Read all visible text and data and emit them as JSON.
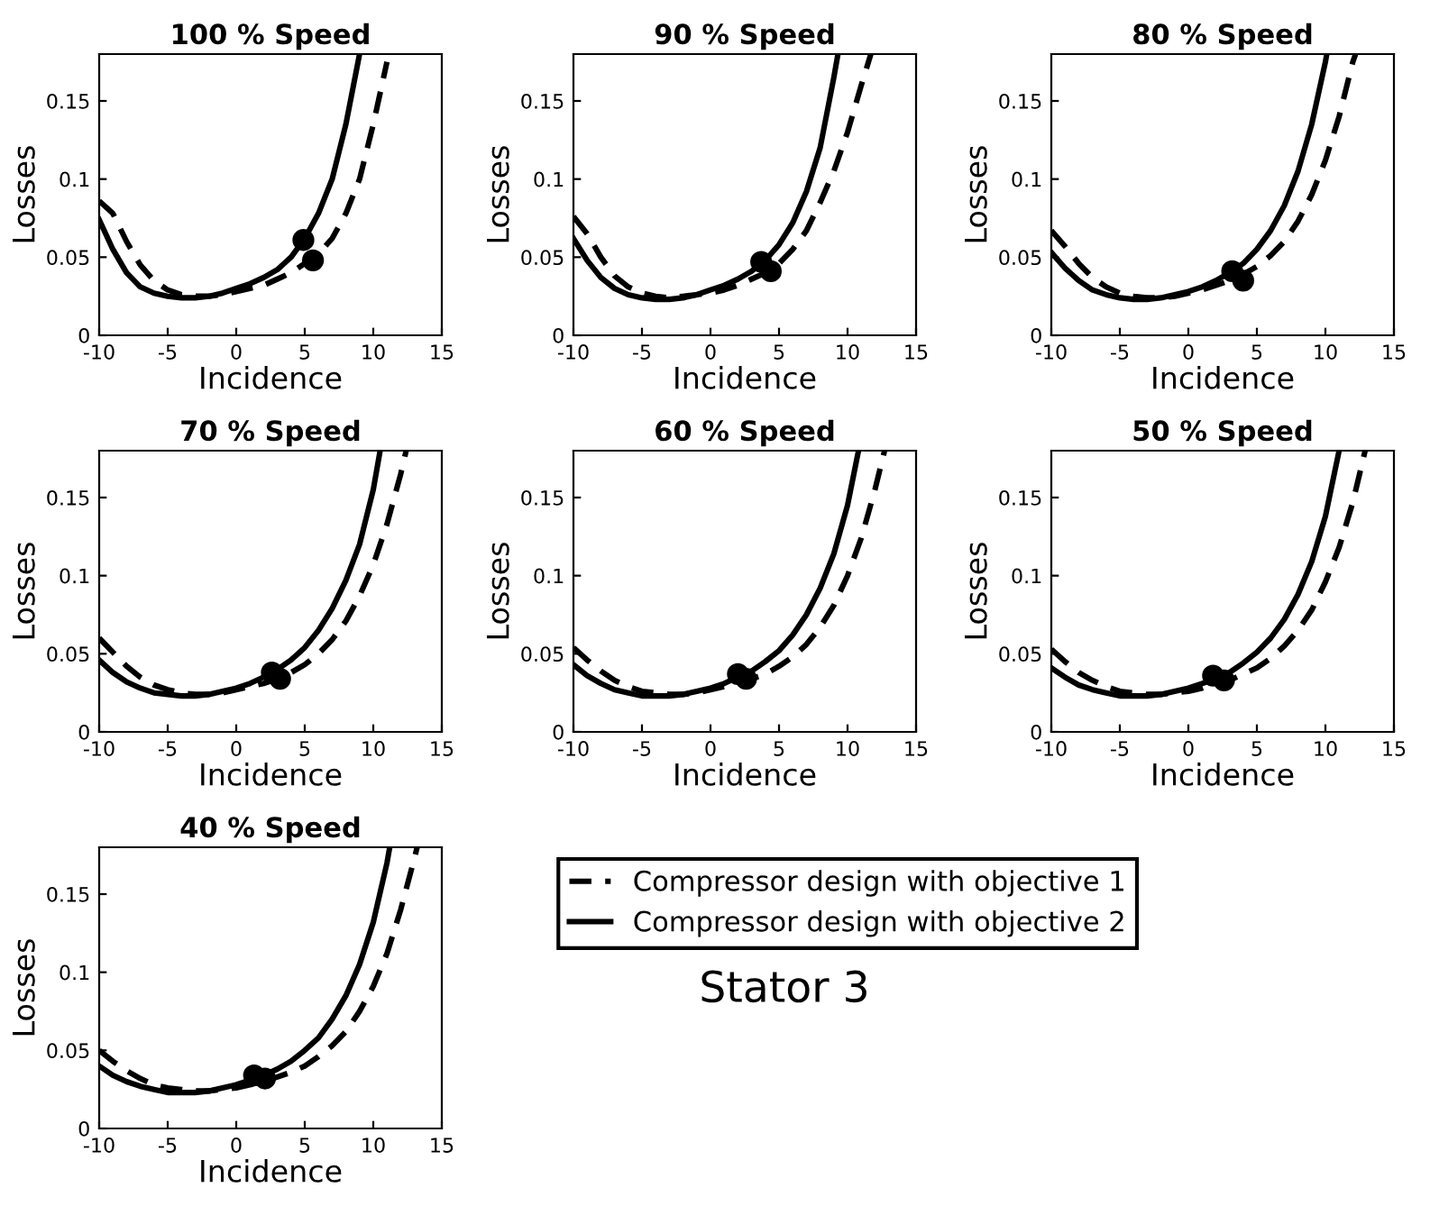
{
  "chart_data": [
    {
      "type": "line",
      "title": "100 % Speed",
      "xlabel": "Incidence",
      "ylabel": "Losses",
      "xlim": [
        -10,
        15
      ],
      "xticks": [
        -10,
        -5,
        0,
        5,
        10,
        15
      ],
      "ylim": [
        0,
        0.18
      ],
      "yticks": [
        0,
        0.05,
        0.1,
        0.15
      ],
      "grid": false,
      "series": [
        {
          "color": "#000000",
          "line_style": "dashed",
          "x": [
            -10,
            -9,
            -8,
            -7,
            -6,
            -5,
            -4,
            -3,
            -2,
            -1,
            0,
            1,
            2,
            3,
            4,
            5,
            6,
            7,
            8,
            9,
            10,
            11
          ],
          "values": [
            0.086,
            0.078,
            0.06,
            0.045,
            0.035,
            0.029,
            0.026,
            0.025,
            0.025,
            0.026,
            0.028,
            0.03,
            0.032,
            0.036,
            0.04,
            0.046,
            0.052,
            0.062,
            0.078,
            0.1,
            0.135,
            0.175
          ]
        },
        {
          "color": "#000000",
          "line_style": "solid",
          "x": [
            -10,
            -9,
            -8,
            -7,
            -6,
            -5,
            -4,
            -3,
            -2,
            -1,
            0,
            1,
            2,
            3,
            4,
            5,
            6,
            7,
            8,
            9
          ],
          "values": [
            0.074,
            0.055,
            0.04,
            0.031,
            0.027,
            0.025,
            0.024,
            0.024,
            0.025,
            0.027,
            0.03,
            0.033,
            0.037,
            0.042,
            0.05,
            0.062,
            0.078,
            0.1,
            0.135,
            0.18
          ]
        },
        {
          "type": "scatter",
          "color": "#000000",
          "marker": "circle",
          "x": [
            5.6
          ],
          "values": [
            0.048
          ]
        },
        {
          "type": "scatter",
          "color": "#000000",
          "marker": "circle",
          "x": [
            4.9
          ],
          "values": [
            0.061
          ]
        }
      ]
    },
    {
      "type": "line",
      "title": "90 % Speed",
      "xlabel": "Incidence",
      "ylabel": "Losses",
      "xlim": [
        -10,
        15
      ],
      "xticks": [
        -10,
        -5,
        0,
        5,
        10,
        15
      ],
      "ylim": [
        0,
        0.18
      ],
      "yticks": [
        0,
        0.05,
        0.1,
        0.15
      ],
      "grid": false,
      "series": [
        {
          "color": "#000000",
          "line_style": "dashed",
          "x": [
            -10,
            -9,
            -8,
            -7,
            -6,
            -5,
            -4,
            -3,
            -2,
            -1,
            0,
            1,
            2,
            3,
            4,
            5,
            6,
            7,
            8,
            9,
            10,
            11,
            11.7
          ],
          "values": [
            0.076,
            0.065,
            0.05,
            0.038,
            0.031,
            0.027,
            0.025,
            0.024,
            0.025,
            0.026,
            0.027,
            0.029,
            0.032,
            0.036,
            0.04,
            0.046,
            0.055,
            0.067,
            0.085,
            0.105,
            0.13,
            0.16,
            0.18
          ]
        },
        {
          "color": "#000000",
          "line_style": "solid",
          "x": [
            -10,
            -9,
            -8,
            -7,
            -6,
            -5,
            -4,
            -3,
            -2,
            -1,
            0,
            1,
            2,
            3,
            4,
            5,
            6,
            7,
            8,
            9,
            9.3
          ],
          "values": [
            0.062,
            0.048,
            0.037,
            0.03,
            0.026,
            0.024,
            0.023,
            0.023,
            0.024,
            0.026,
            0.029,
            0.032,
            0.036,
            0.041,
            0.048,
            0.058,
            0.072,
            0.092,
            0.12,
            0.165,
            0.18
          ]
        },
        {
          "type": "scatter",
          "color": "#000000",
          "marker": "circle",
          "x": [
            4.4
          ],
          "values": [
            0.041
          ]
        },
        {
          "type": "scatter",
          "color": "#000000",
          "marker": "circle",
          "x": [
            3.7
          ],
          "values": [
            0.047
          ]
        }
      ]
    },
    {
      "type": "line",
      "title": "80 % Speed",
      "xlabel": "Incidence",
      "ylabel": "Losses",
      "xlim": [
        -10,
        15
      ],
      "xticks": [
        -10,
        -5,
        0,
        5,
        10,
        15
      ],
      "ylim": [
        0,
        0.18
      ],
      "yticks": [
        0,
        0.05,
        0.1,
        0.15
      ],
      "grid": false,
      "series": [
        {
          "color": "#000000",
          "line_style": "dashed",
          "x": [
            -10,
            -9,
            -8,
            -7,
            -6,
            -5,
            -4,
            -3,
            -2,
            -1,
            0,
            1,
            2,
            3,
            4,
            5,
            6,
            7,
            8,
            9,
            10,
            11,
            12,
            12.2
          ],
          "values": [
            0.067,
            0.057,
            0.046,
            0.037,
            0.031,
            0.027,
            0.025,
            0.024,
            0.024,
            0.025,
            0.027,
            0.029,
            0.032,
            0.035,
            0.039,
            0.044,
            0.051,
            0.06,
            0.073,
            0.09,
            0.112,
            0.14,
            0.175,
            0.18
          ]
        },
        {
          "color": "#000000",
          "line_style": "solid",
          "x": [
            -10,
            -9,
            -8,
            -7,
            -6,
            -5,
            -4,
            -3,
            -2,
            -1,
            0,
            1,
            2,
            3,
            4,
            5,
            6,
            7,
            8,
            9,
            10,
            10.1
          ],
          "values": [
            0.053,
            0.043,
            0.035,
            0.029,
            0.026,
            0.024,
            0.023,
            0.023,
            0.024,
            0.026,
            0.028,
            0.031,
            0.035,
            0.04,
            0.046,
            0.055,
            0.067,
            0.083,
            0.105,
            0.135,
            0.175,
            0.18
          ]
        },
        {
          "type": "scatter",
          "color": "#000000",
          "marker": "circle",
          "x": [
            4.0
          ],
          "values": [
            0.035
          ]
        },
        {
          "type": "scatter",
          "color": "#000000",
          "marker": "circle",
          "x": [
            3.2
          ],
          "values": [
            0.041
          ]
        }
      ]
    },
    {
      "type": "line",
      "title": "70 % Speed",
      "xlabel": "Incidence",
      "ylabel": "Losses",
      "xlim": [
        -10,
        15
      ],
      "xticks": [
        -10,
        -5,
        0,
        5,
        10,
        15
      ],
      "ylim": [
        0,
        0.18
      ],
      "yticks": [
        0,
        0.05,
        0.1,
        0.15
      ],
      "grid": false,
      "series": [
        {
          "color": "#000000",
          "line_style": "dashed",
          "x": [
            -10,
            -9,
            -8,
            -7,
            -6,
            -5,
            -4,
            -3,
            -2,
            -1,
            0,
            1,
            2,
            3,
            4,
            5,
            6,
            7,
            8,
            9,
            10,
            11,
            12,
            12.4
          ],
          "values": [
            0.06,
            0.051,
            0.042,
            0.035,
            0.03,
            0.027,
            0.025,
            0.024,
            0.024,
            0.025,
            0.027,
            0.029,
            0.031,
            0.034,
            0.038,
            0.043,
            0.05,
            0.059,
            0.071,
            0.087,
            0.107,
            0.133,
            0.165,
            0.18
          ]
        },
        {
          "color": "#000000",
          "line_style": "solid",
          "x": [
            -10,
            -9,
            -8,
            -7,
            -6,
            -5,
            -4,
            -3,
            -2,
            -1,
            0,
            1,
            2,
            3,
            4,
            5,
            6,
            7,
            8,
            9,
            10,
            10.5
          ],
          "values": [
            0.046,
            0.038,
            0.032,
            0.028,
            0.025,
            0.024,
            0.023,
            0.023,
            0.024,
            0.026,
            0.028,
            0.031,
            0.035,
            0.04,
            0.046,
            0.054,
            0.065,
            0.079,
            0.097,
            0.12,
            0.155,
            0.18
          ]
        },
        {
          "type": "scatter",
          "color": "#000000",
          "marker": "circle",
          "x": [
            3.2
          ],
          "values": [
            0.034
          ]
        },
        {
          "type": "scatter",
          "color": "#000000",
          "marker": "circle",
          "x": [
            2.6
          ],
          "values": [
            0.038
          ]
        }
      ]
    },
    {
      "type": "line",
      "title": "60 % Speed",
      "xlabel": "Incidence",
      "ylabel": "Losses",
      "xlim": [
        -10,
        15
      ],
      "xticks": [
        -10,
        -5,
        0,
        5,
        10,
        15
      ],
      "ylim": [
        0,
        0.18
      ],
      "yticks": [
        0,
        0.05,
        0.1,
        0.15
      ],
      "grid": false,
      "series": [
        {
          "color": "#000000",
          "line_style": "dashed",
          "x": [
            -10,
            -9,
            -8,
            -7,
            -6,
            -5,
            -4,
            -3,
            -2,
            -1,
            0,
            1,
            2,
            3,
            4,
            5,
            6,
            7,
            8,
            9,
            10,
            11,
            12,
            12.7
          ],
          "values": [
            0.054,
            0.046,
            0.039,
            0.033,
            0.029,
            0.026,
            0.025,
            0.024,
            0.024,
            0.025,
            0.027,
            0.029,
            0.031,
            0.034,
            0.037,
            0.042,
            0.048,
            0.056,
            0.067,
            0.081,
            0.1,
            0.124,
            0.155,
            0.18
          ]
        },
        {
          "color": "#000000",
          "line_style": "solid",
          "x": [
            -10,
            -9,
            -8,
            -7,
            -6,
            -5,
            -4,
            -3,
            -2,
            -1,
            0,
            1,
            2,
            3,
            4,
            5,
            6,
            7,
            8,
            9,
            10,
            10.8
          ],
          "values": [
            0.043,
            0.036,
            0.031,
            0.027,
            0.025,
            0.023,
            0.023,
            0.023,
            0.024,
            0.026,
            0.028,
            0.031,
            0.035,
            0.039,
            0.045,
            0.052,
            0.062,
            0.075,
            0.092,
            0.114,
            0.145,
            0.18
          ]
        },
        {
          "type": "scatter",
          "color": "#000000",
          "marker": "circle",
          "x": [
            2.6
          ],
          "values": [
            0.034
          ]
        },
        {
          "type": "scatter",
          "color": "#000000",
          "marker": "circle",
          "x": [
            2.0
          ],
          "values": [
            0.037
          ]
        }
      ]
    },
    {
      "type": "line",
      "title": "50 % Speed",
      "xlabel": "Incidence",
      "ylabel": "Losses",
      "xlim": [
        -10,
        15
      ],
      "xticks": [
        -10,
        -5,
        0,
        5,
        10,
        15
      ],
      "ylim": [
        0,
        0.18
      ],
      "yticks": [
        0,
        0.05,
        0.1,
        0.15
      ],
      "grid": false,
      "series": [
        {
          "color": "#000000",
          "line_style": "dashed",
          "x": [
            -10,
            -9,
            -8,
            -7,
            -6,
            -5,
            -4,
            -3,
            -2,
            -1,
            0,
            1,
            2,
            3,
            4,
            5,
            6,
            7,
            8,
            9,
            10,
            11,
            12,
            12.9
          ],
          "values": [
            0.053,
            0.045,
            0.038,
            0.033,
            0.029,
            0.026,
            0.025,
            0.024,
            0.024,
            0.025,
            0.026,
            0.028,
            0.031,
            0.033,
            0.037,
            0.041,
            0.047,
            0.055,
            0.065,
            0.078,
            0.096,
            0.118,
            0.147,
            0.18
          ]
        },
        {
          "color": "#000000",
          "line_style": "solid",
          "x": [
            -10,
            -9,
            -8,
            -7,
            -6,
            -5,
            -4,
            -3,
            -2,
            -1,
            0,
            1,
            2,
            3,
            4,
            5,
            6,
            7,
            8,
            9,
            10,
            11
          ],
          "values": [
            0.041,
            0.035,
            0.03,
            0.027,
            0.025,
            0.023,
            0.023,
            0.023,
            0.024,
            0.026,
            0.028,
            0.031,
            0.034,
            0.038,
            0.044,
            0.051,
            0.06,
            0.072,
            0.088,
            0.109,
            0.138,
            0.18
          ]
        },
        {
          "type": "scatter",
          "color": "#000000",
          "marker": "circle",
          "x": [
            2.6
          ],
          "values": [
            0.033
          ]
        },
        {
          "type": "scatter",
          "color": "#000000",
          "marker": "circle",
          "x": [
            1.8
          ],
          "values": [
            0.036
          ]
        }
      ]
    },
    {
      "type": "line",
      "title": "40 % Speed",
      "xlabel": "Incidence",
      "ylabel": "Losses",
      "xlim": [
        -10,
        15
      ],
      "xticks": [
        -10,
        -5,
        0,
        5,
        10,
        15
      ],
      "ylim": [
        0,
        0.18
      ],
      "yticks": [
        0,
        0.05,
        0.1,
        0.15
      ],
      "grid": false,
      "legend": "right",
      "annotations": [
        "Stator 3"
      ],
      "series": [
        {
          "name": "Compressor design with objective 1",
          "color": "#000000",
          "line_style": "dashed",
          "x": [
            -10,
            -9,
            -8,
            -7,
            -6,
            -5,
            -4,
            -3,
            -2,
            -1,
            0,
            1,
            2,
            3,
            4,
            5,
            6,
            7,
            8,
            9,
            10,
            11,
            12,
            13,
            13.2
          ],
          "values": [
            0.05,
            0.043,
            0.037,
            0.032,
            0.028,
            0.026,
            0.025,
            0.024,
            0.024,
            0.025,
            0.026,
            0.028,
            0.03,
            0.033,
            0.036,
            0.04,
            0.046,
            0.053,
            0.062,
            0.075,
            0.091,
            0.112,
            0.14,
            0.173,
            0.18
          ]
        },
        {
          "name": "Compressor design with objective 2",
          "color": "#000000",
          "line_style": "solid",
          "x": [
            -10,
            -9,
            -8,
            -7,
            -6,
            -5,
            -4,
            -3,
            -2,
            -1,
            0,
            1,
            2,
            3,
            4,
            5,
            6,
            7,
            8,
            9,
            10,
            11,
            11.2
          ],
          "values": [
            0.04,
            0.034,
            0.03,
            0.027,
            0.025,
            0.023,
            0.023,
            0.023,
            0.024,
            0.026,
            0.028,
            0.031,
            0.034,
            0.038,
            0.043,
            0.05,
            0.058,
            0.07,
            0.085,
            0.105,
            0.132,
            0.17,
            0.18
          ]
        },
        {
          "type": "scatter",
          "color": "#000000",
          "marker": "circle",
          "x": [
            2.1
          ],
          "values": [
            0.032
          ]
        },
        {
          "type": "scatter",
          "color": "#000000",
          "marker": "circle",
          "x": [
            1.3
          ],
          "values": [
            0.034
          ]
        }
      ]
    }
  ]
}
